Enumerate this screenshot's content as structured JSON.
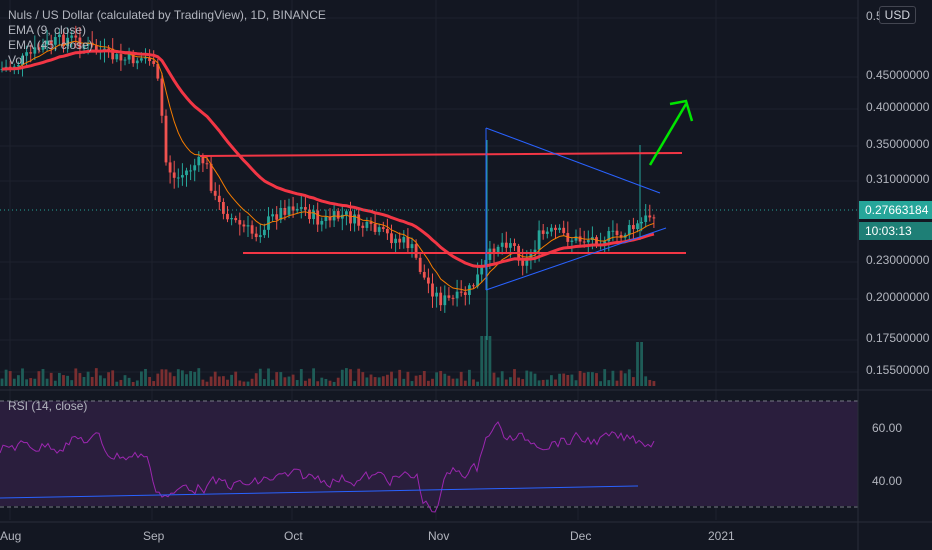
{
  "chart_data": {
    "type": "candlestick",
    "symbol_title": "Nuls / US Dollar (calculated by TradingView), 1D, BINANCE",
    "indicators": [
      "EMA (9, close)",
      "EMA (45, close)",
      "Vol"
    ],
    "rsi_label": "RSI (14, close)",
    "currency": "USD",
    "last_price": "0.27663184",
    "countdown": "10:03:13",
    "price_axis_labels": [
      "0.5",
      "0.45000000",
      "0.40000000",
      "0.35000000",
      "0.31000000",
      "0.23000000",
      "0.20000000",
      "0.17500000",
      "0.15500000"
    ],
    "rsi_axis_labels": [
      "60.00",
      "40.00"
    ],
    "x_axis_labels": [
      "Aug",
      "Sep",
      "Oct",
      "Nov",
      "Dec",
      "2021"
    ],
    "annotations": {
      "resistance_price": 0.337,
      "support_price": 0.235,
      "arrow": "breakout-up",
      "triangle": "symmetrical"
    },
    "colors": {
      "up": "#26a69a",
      "down": "#ef5350",
      "ema9": "#f57c00",
      "ema45": "#f23645",
      "trendline": "#2962ff",
      "arrow": "#00e600",
      "rsi": "#9c27b0"
    }
  }
}
